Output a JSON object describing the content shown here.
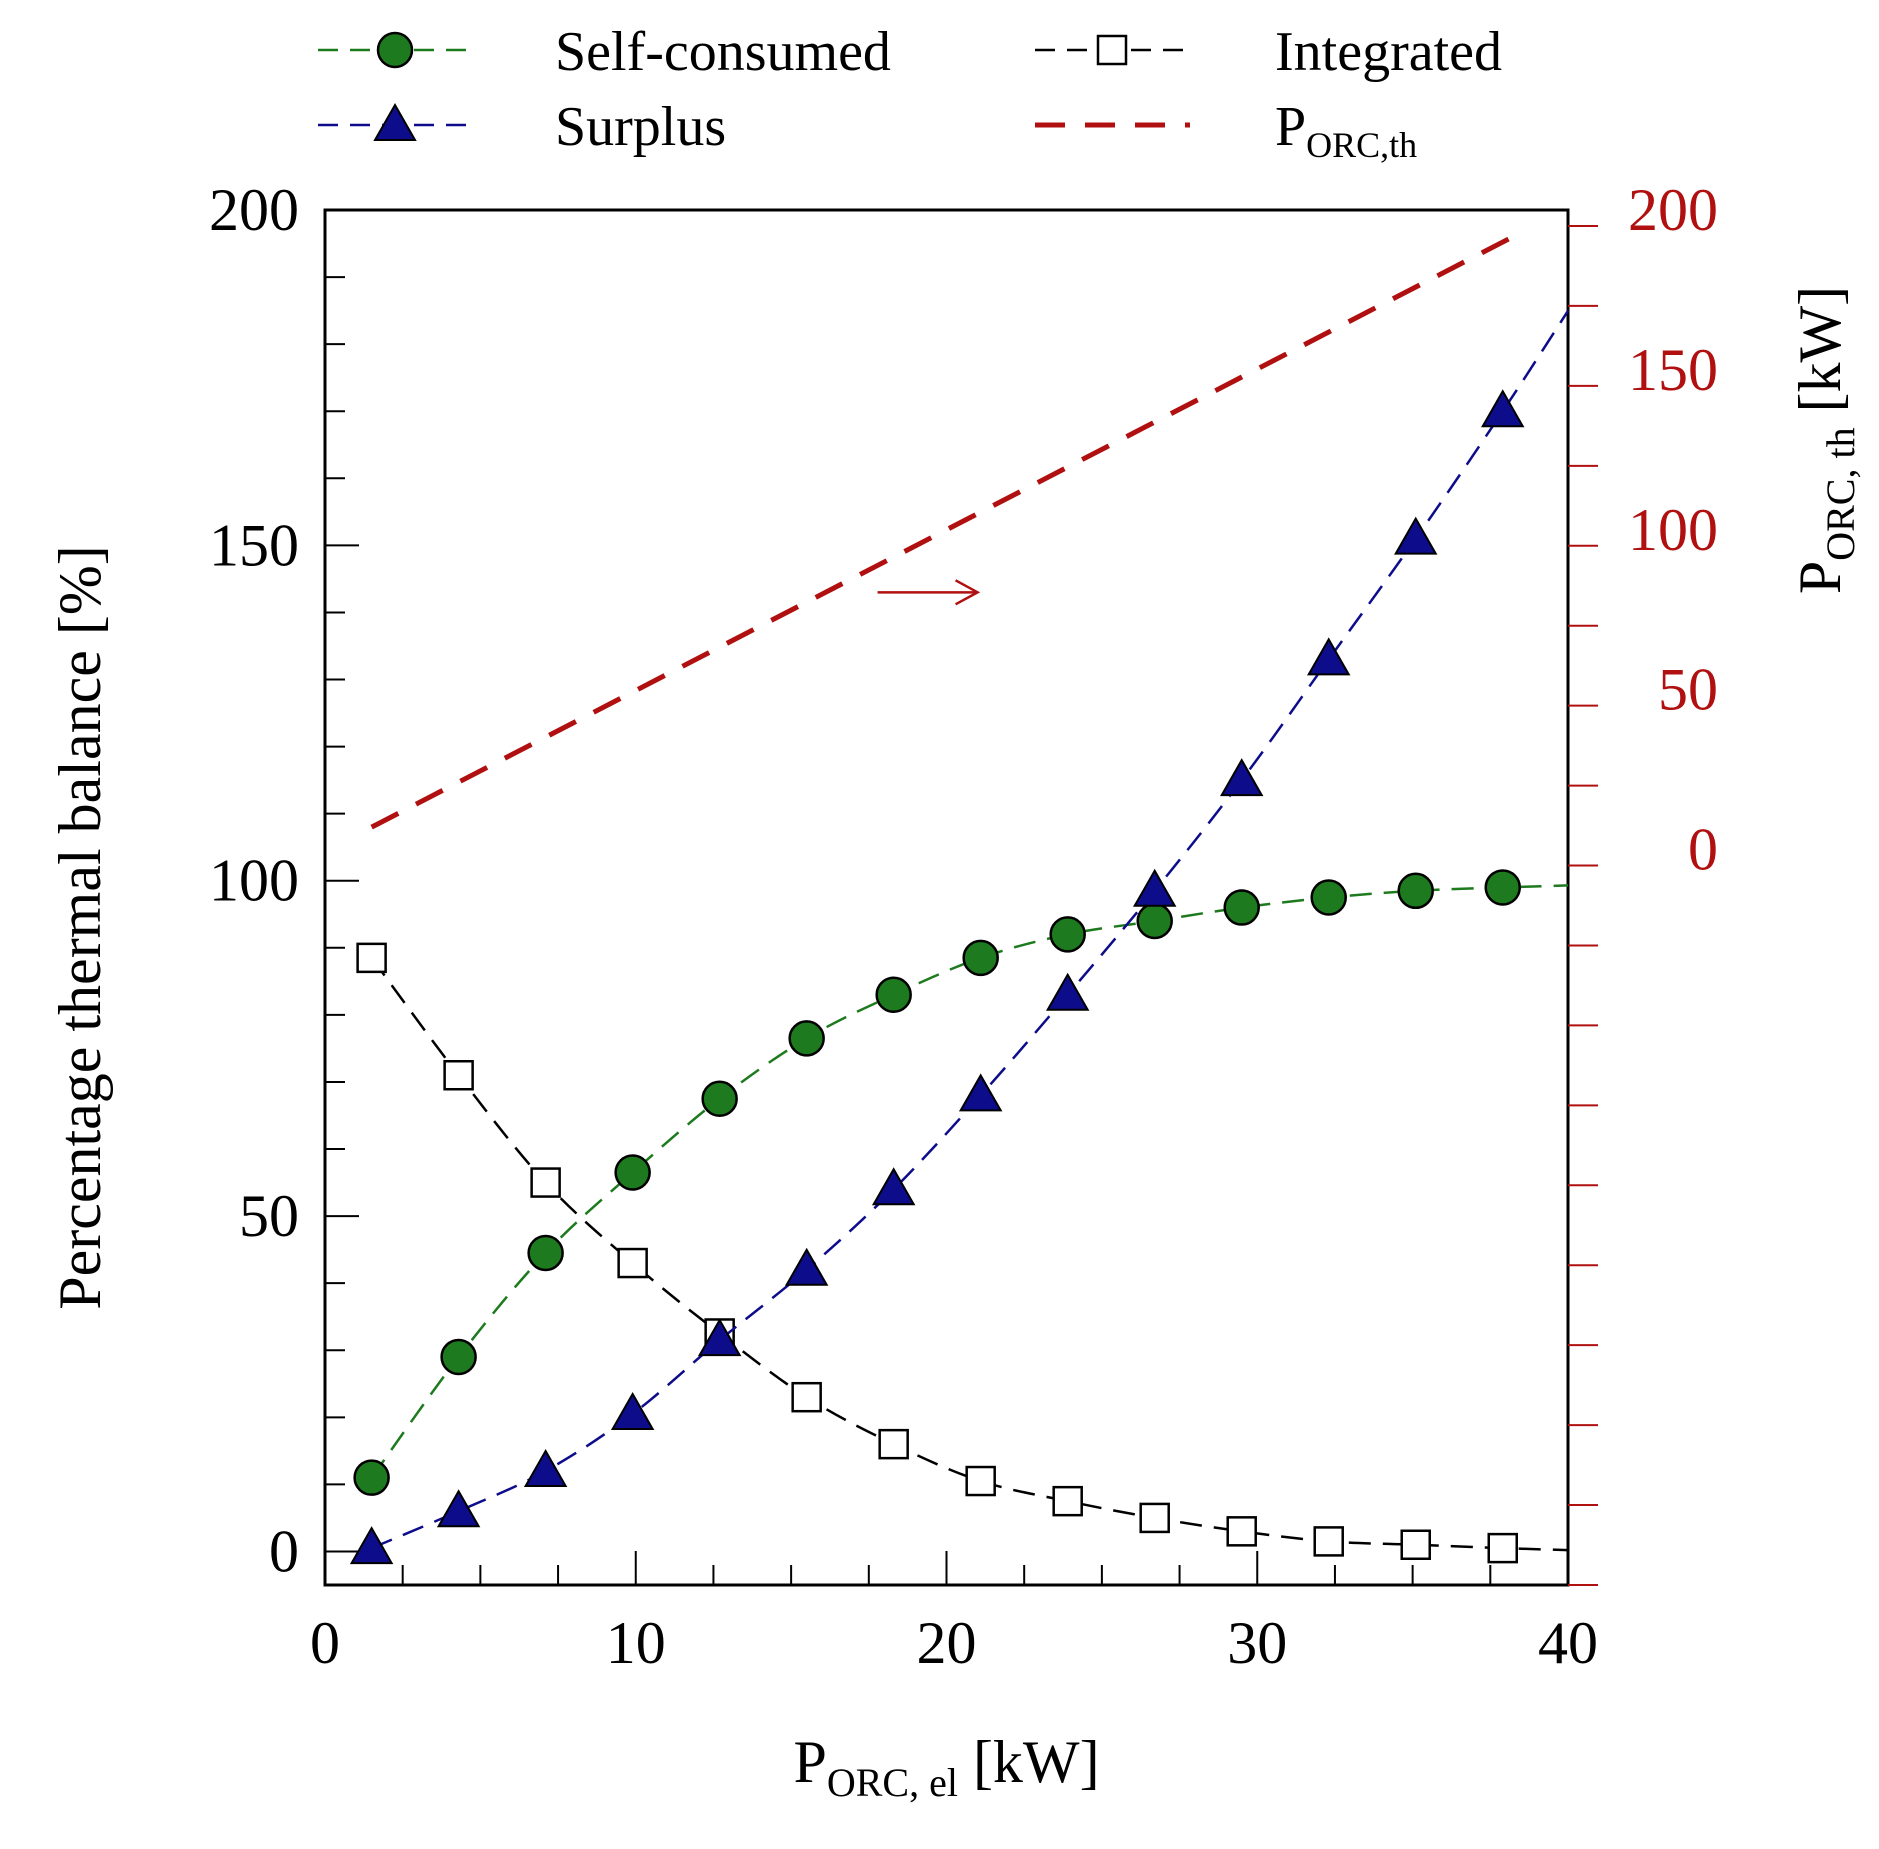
{
  "chart_data": {
    "type": "line",
    "xlabel_main": "P",
    "xlabel_sub": "ORC, el",
    "xlabel_unit": " [kW]",
    "ylabel": "Percentage thermal balance [%]",
    "y2label_main": "P",
    "y2label_sub": "ORC, th",
    "y2label_unit": " [kW]",
    "xlim": [
      0,
      40
    ],
    "ylim": [
      -5,
      200
    ],
    "y2lim": [
      -230,
      200
    ],
    "x_ticks": [
      0,
      10,
      20,
      30,
      40
    ],
    "x_tick_labels": [
      "0",
      "10",
      "20",
      "30",
      "40"
    ],
    "y_ticks": [
      0,
      50,
      100,
      150,
      200
    ],
    "y_tick_labels": [
      "0",
      "50",
      "100",
      "150",
      "200"
    ],
    "y2_ticks": [
      0,
      50,
      100,
      150,
      200
    ],
    "y2_tick_labels": [
      "0",
      "50",
      "100",
      "150",
      "200"
    ],
    "grid": false,
    "legend_position": "top",
    "colors": {
      "self_consumed": "#1e7a1e",
      "surplus": "#0d0d8c",
      "integrated": "#000000",
      "porc_th": "#b01010",
      "right_axis": "#b01010"
    },
    "series": [
      {
        "name": "Self-consumed",
        "marker": "circle",
        "line": "dashed",
        "x": [
          1.5,
          4.3,
          7.1,
          9.9,
          12.7,
          15.5,
          18.3,
          21.1,
          23.9,
          26.7,
          29.5,
          32.3,
          35.1,
          37.9
        ],
        "values": [
          11,
          29,
          44.5,
          56.5,
          67.5,
          76.5,
          83,
          88.5,
          92,
          94,
          96,
          97.5,
          98.5,
          99
        ]
      },
      {
        "name": "Integrated",
        "marker": "open-square",
        "line": "dashed",
        "x": [
          1.5,
          4.3,
          7.1,
          9.9,
          12.7,
          15.5,
          18.3,
          21.1,
          23.9,
          26.7,
          29.5,
          32.3,
          35.1,
          37.9
        ],
        "values": [
          88.5,
          71,
          55,
          43,
          32.5,
          23,
          16,
          10.5,
          7.5,
          5,
          3,
          1.5,
          1,
          0.5
        ]
      },
      {
        "name": "Surplus",
        "marker": "triangle",
        "line": "dashed",
        "x": [
          1.5,
          4.3,
          7.1,
          9.9,
          12.7,
          15.5,
          18.3,
          21.1,
          23.9,
          26.7,
          29.5,
          32.3,
          35.1,
          37.9
        ],
        "values": [
          0.5,
          6,
          12,
          20.5,
          31.5,
          42,
          54,
          68,
          83,
          98.5,
          115,
          133,
          151,
          170
        ]
      },
      {
        "name": "P",
        "name_sub": "ORC,th",
        "axis": "right",
        "marker": "none",
        "line": "dashed",
        "x": [
          1.5,
          38.5
        ],
        "values": [
          7,
          193
        ]
      }
    ],
    "annotations": [
      {
        "text": "arrow pointing right to P_ORC,th axis",
        "x": 21,
        "y": 143
      }
    ]
  }
}
